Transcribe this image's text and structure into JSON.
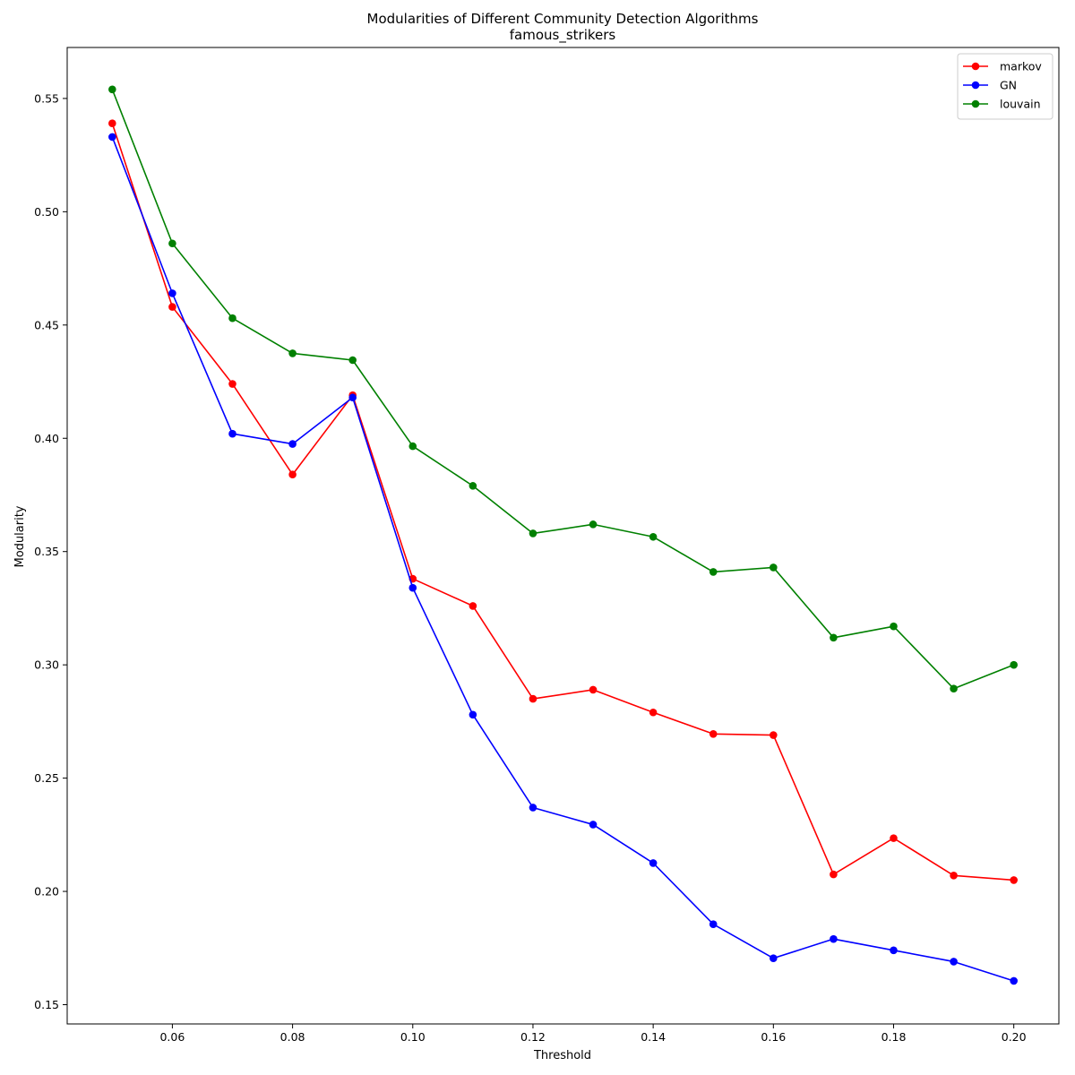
{
  "chart_data": {
    "type": "line",
    "title": "Modularities of Different Community Detection Algorithms",
    "subtitle": "famous_strikers",
    "xlabel": "Threshold",
    "ylabel": "Modularity",
    "xlim": [
      0.0425,
      0.2075
    ],
    "ylim": [
      0.1415,
      0.5725
    ],
    "x": [
      0.05,
      0.06,
      0.07,
      0.08,
      0.09,
      0.1,
      0.11,
      0.12,
      0.13,
      0.14,
      0.15,
      0.16,
      0.17,
      0.18,
      0.19,
      0.2
    ],
    "xticks": [
      0.06,
      0.08,
      0.1,
      0.12,
      0.14,
      0.16,
      0.18,
      0.2
    ],
    "xtick_labels": [
      "0.06",
      "0.08",
      "0.10",
      "0.12",
      "0.14",
      "0.16",
      "0.18",
      "0.20"
    ],
    "yticks": [
      0.15,
      0.2,
      0.25,
      0.3,
      0.35,
      0.4,
      0.45,
      0.5,
      0.55
    ],
    "ytick_labels": [
      "0.15",
      "0.20",
      "0.25",
      "0.30",
      "0.35",
      "0.40",
      "0.45",
      "0.50",
      "0.55"
    ],
    "grid": false,
    "legend_position": "top-right",
    "series": [
      {
        "name": "markov",
        "color": "#ff0000",
        "values": [
          0.539,
          0.458,
          0.424,
          0.384,
          0.419,
          0.338,
          0.326,
          0.285,
          0.289,
          0.279,
          0.2695,
          0.269,
          0.2075,
          0.2235,
          0.207,
          0.205
        ]
      },
      {
        "name": "GN",
        "color": "#0000ff",
        "values": [
          0.533,
          0.464,
          0.402,
          0.3975,
          0.418,
          0.334,
          0.278,
          0.237,
          0.2295,
          0.2125,
          0.1855,
          0.1705,
          0.179,
          0.174,
          0.169,
          0.1605
        ]
      },
      {
        "name": "louvain",
        "color": "#008000",
        "values": [
          0.554,
          0.486,
          0.453,
          0.4375,
          0.4345,
          0.3965,
          0.379,
          0.358,
          0.362,
          0.3565,
          0.341,
          0.343,
          0.312,
          0.317,
          0.2895,
          0.3
        ]
      }
    ]
  }
}
